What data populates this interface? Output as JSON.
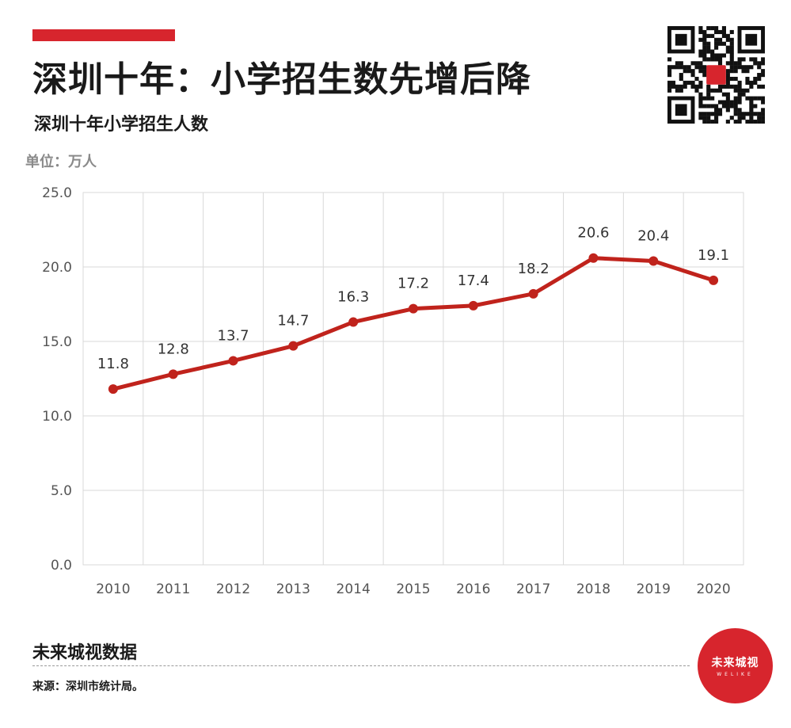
{
  "header": {
    "title": "深圳十年：小学招生数先增后降",
    "subtitle": "深圳十年小学招生人数",
    "unit": "单位：万人"
  },
  "footer": {
    "brand": "未来城视数据",
    "source": "来源：深圳市统计局。"
  },
  "logo": {
    "text": "未来城视",
    "sub": "WELIKE"
  },
  "colors": {
    "accent": "#d7252d",
    "line": "#c0231c",
    "grid": "#d9d9d9"
  },
  "chart_data": {
    "type": "line",
    "categories": [
      "2010",
      "2011",
      "2012",
      "2013",
      "2014",
      "2015",
      "2016",
      "2017",
      "2018",
      "2019",
      "2020"
    ],
    "series": [
      {
        "values": [
          11.8,
          12.8,
          13.7,
          14.7,
          16.3,
          17.2,
          17.4,
          18.2,
          20.6,
          20.4,
          19.1
        ]
      }
    ],
    "data_labels": [
      "11.8",
      "12.8",
      "13.7",
      "14.7",
      "16.3",
      "17.2",
      "17.4",
      "18.2",
      "20.6",
      "20.4",
      "19.1"
    ],
    "ylim": [
      0,
      25
    ],
    "y_ticks": [
      "0.0",
      "5.0",
      "10.0",
      "15.0",
      "20.0",
      "25.0"
    ],
    "grid": true,
    "legend": "none"
  }
}
